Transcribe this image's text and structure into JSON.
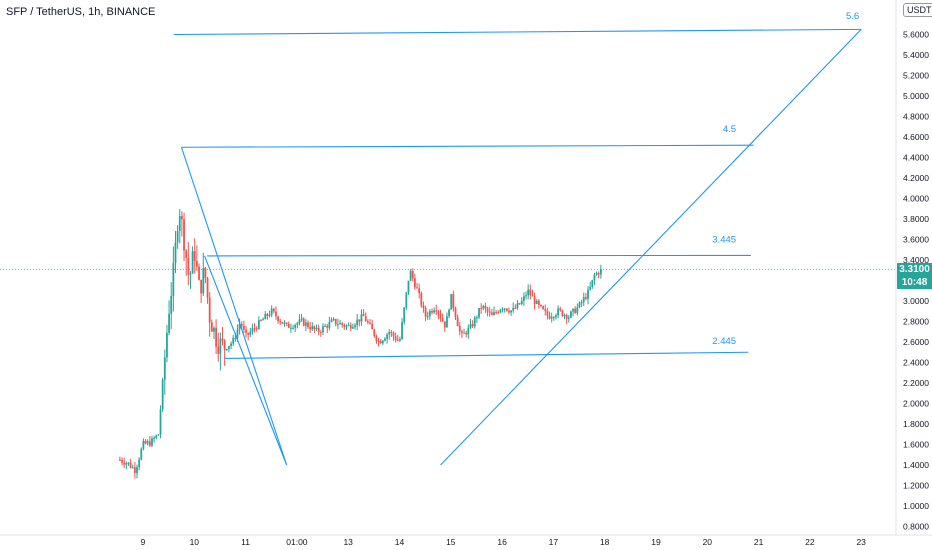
{
  "header": {
    "symbol": "SFP / TetherUS, 1h, BINANCE",
    "currency": "USDT"
  },
  "last_price": {
    "value": "3.3100",
    "countdown": "10:48"
  },
  "colors": {
    "up": "#26a69a",
    "down": "#ef5350",
    "drawing": "#2196f3"
  },
  "chart_data": {
    "type": "candlestick",
    "x_ticks": [
      "9",
      "10",
      "11",
      "01:00",
      "13",
      "14",
      "15",
      "16",
      "17",
      "18",
      "19",
      "20",
      "21",
      "22",
      "23"
    ],
    "y_ticks": [
      "0.8000",
      "1.0000",
      "1.2000",
      "1.4000",
      "1.6000",
      "1.8000",
      "2.0000",
      "2.2000",
      "2.4000",
      "2.6000",
      "2.8000",
      "3.0000",
      "3.2000",
      "3.4000",
      "3.6000",
      "3.8000",
      "4.0000",
      "4.2000",
      "4.4000",
      "4.6000",
      "4.8000",
      "5.0000",
      "5.2000",
      "5.4000",
      "5.6000"
    ],
    "ylim": [
      0.8,
      5.8
    ],
    "price_path": [
      [
        8.55,
        1.45
      ],
      [
        8.7,
        1.42
      ],
      [
        8.85,
        1.35
      ],
      [
        9.0,
        1.6
      ],
      [
        9.15,
        1.62
      ],
      [
        9.3,
        1.7
      ],
      [
        9.4,
        2.3
      ],
      [
        9.5,
        2.9
      ],
      [
        9.6,
        3.3
      ],
      [
        9.7,
        3.95
      ],
      [
        9.8,
        3.6
      ],
      [
        9.9,
        3.2
      ],
      [
        10.0,
        3.5
      ],
      [
        10.1,
        3.1
      ],
      [
        10.2,
        3.3
      ],
      [
        10.3,
        2.85
      ],
      [
        10.45,
        2.6
      ],
      [
        10.6,
        2.55
      ],
      [
        10.75,
        2.6
      ],
      [
        10.9,
        2.8
      ],
      [
        11.0,
        2.65
      ],
      [
        11.2,
        2.75
      ],
      [
        11.5,
        2.9
      ],
      [
        11.8,
        2.75
      ],
      [
        12.1,
        2.8
      ],
      [
        12.4,
        2.7
      ],
      [
        12.7,
        2.8
      ],
      [
        13.0,
        2.75
      ],
      [
        13.3,
        2.85
      ],
      [
        13.6,
        2.6
      ],
      [
        13.8,
        2.7
      ],
      [
        14.0,
        2.6
      ],
      [
        14.1,
        2.95
      ],
      [
        14.2,
        3.3
      ],
      [
        14.35,
        3.1
      ],
      [
        14.5,
        2.85
      ],
      [
        14.7,
        2.95
      ],
      [
        14.9,
        2.75
      ],
      [
        15.0,
        3.05
      ],
      [
        15.2,
        2.65
      ],
      [
        15.4,
        2.75
      ],
      [
        15.6,
        2.95
      ],
      [
        15.8,
        2.85
      ],
      [
        16.0,
        2.95
      ],
      [
        16.2,
        2.9
      ],
      [
        16.4,
        3.0
      ],
      [
        16.5,
        3.1
      ],
      [
        16.7,
        2.95
      ],
      [
        16.9,
        2.85
      ],
      [
        17.1,
        2.9
      ],
      [
        17.3,
        2.85
      ],
      [
        17.5,
        2.95
      ],
      [
        17.7,
        3.1
      ],
      [
        17.8,
        3.25
      ],
      [
        17.95,
        3.31
      ]
    ],
    "levels": [
      {
        "label": "5.6",
        "value": 5.6
      },
      {
        "label": "4.5",
        "value": 4.5
      },
      {
        "label": "3.445",
        "value": 3.445
      },
      {
        "label": "2.445",
        "value": 2.445
      }
    ],
    "drawing_lines": [
      {
        "x1": 9.6,
        "y1": 5.6,
        "x2": 23.0,
        "y2": 5.65
      },
      {
        "x1": 9.75,
        "y1": 4.5,
        "x2": 20.9,
        "y2": 4.52
      },
      {
        "x1": 10.25,
        "y1": 3.44,
        "x2": 20.85,
        "y2": 3.445
      },
      {
        "x1": 10.6,
        "y1": 2.44,
        "x2": 20.8,
        "y2": 2.5
      },
      {
        "x1": 9.75,
        "y1": 4.5,
        "x2": 11.8,
        "y2": 1.4
      },
      {
        "x1": 10.2,
        "y1": 3.44,
        "x2": 11.8,
        "y2": 1.4
      },
      {
        "x1": 14.8,
        "y1": 1.4,
        "x2": 23.0,
        "y2": 5.65
      }
    ]
  }
}
